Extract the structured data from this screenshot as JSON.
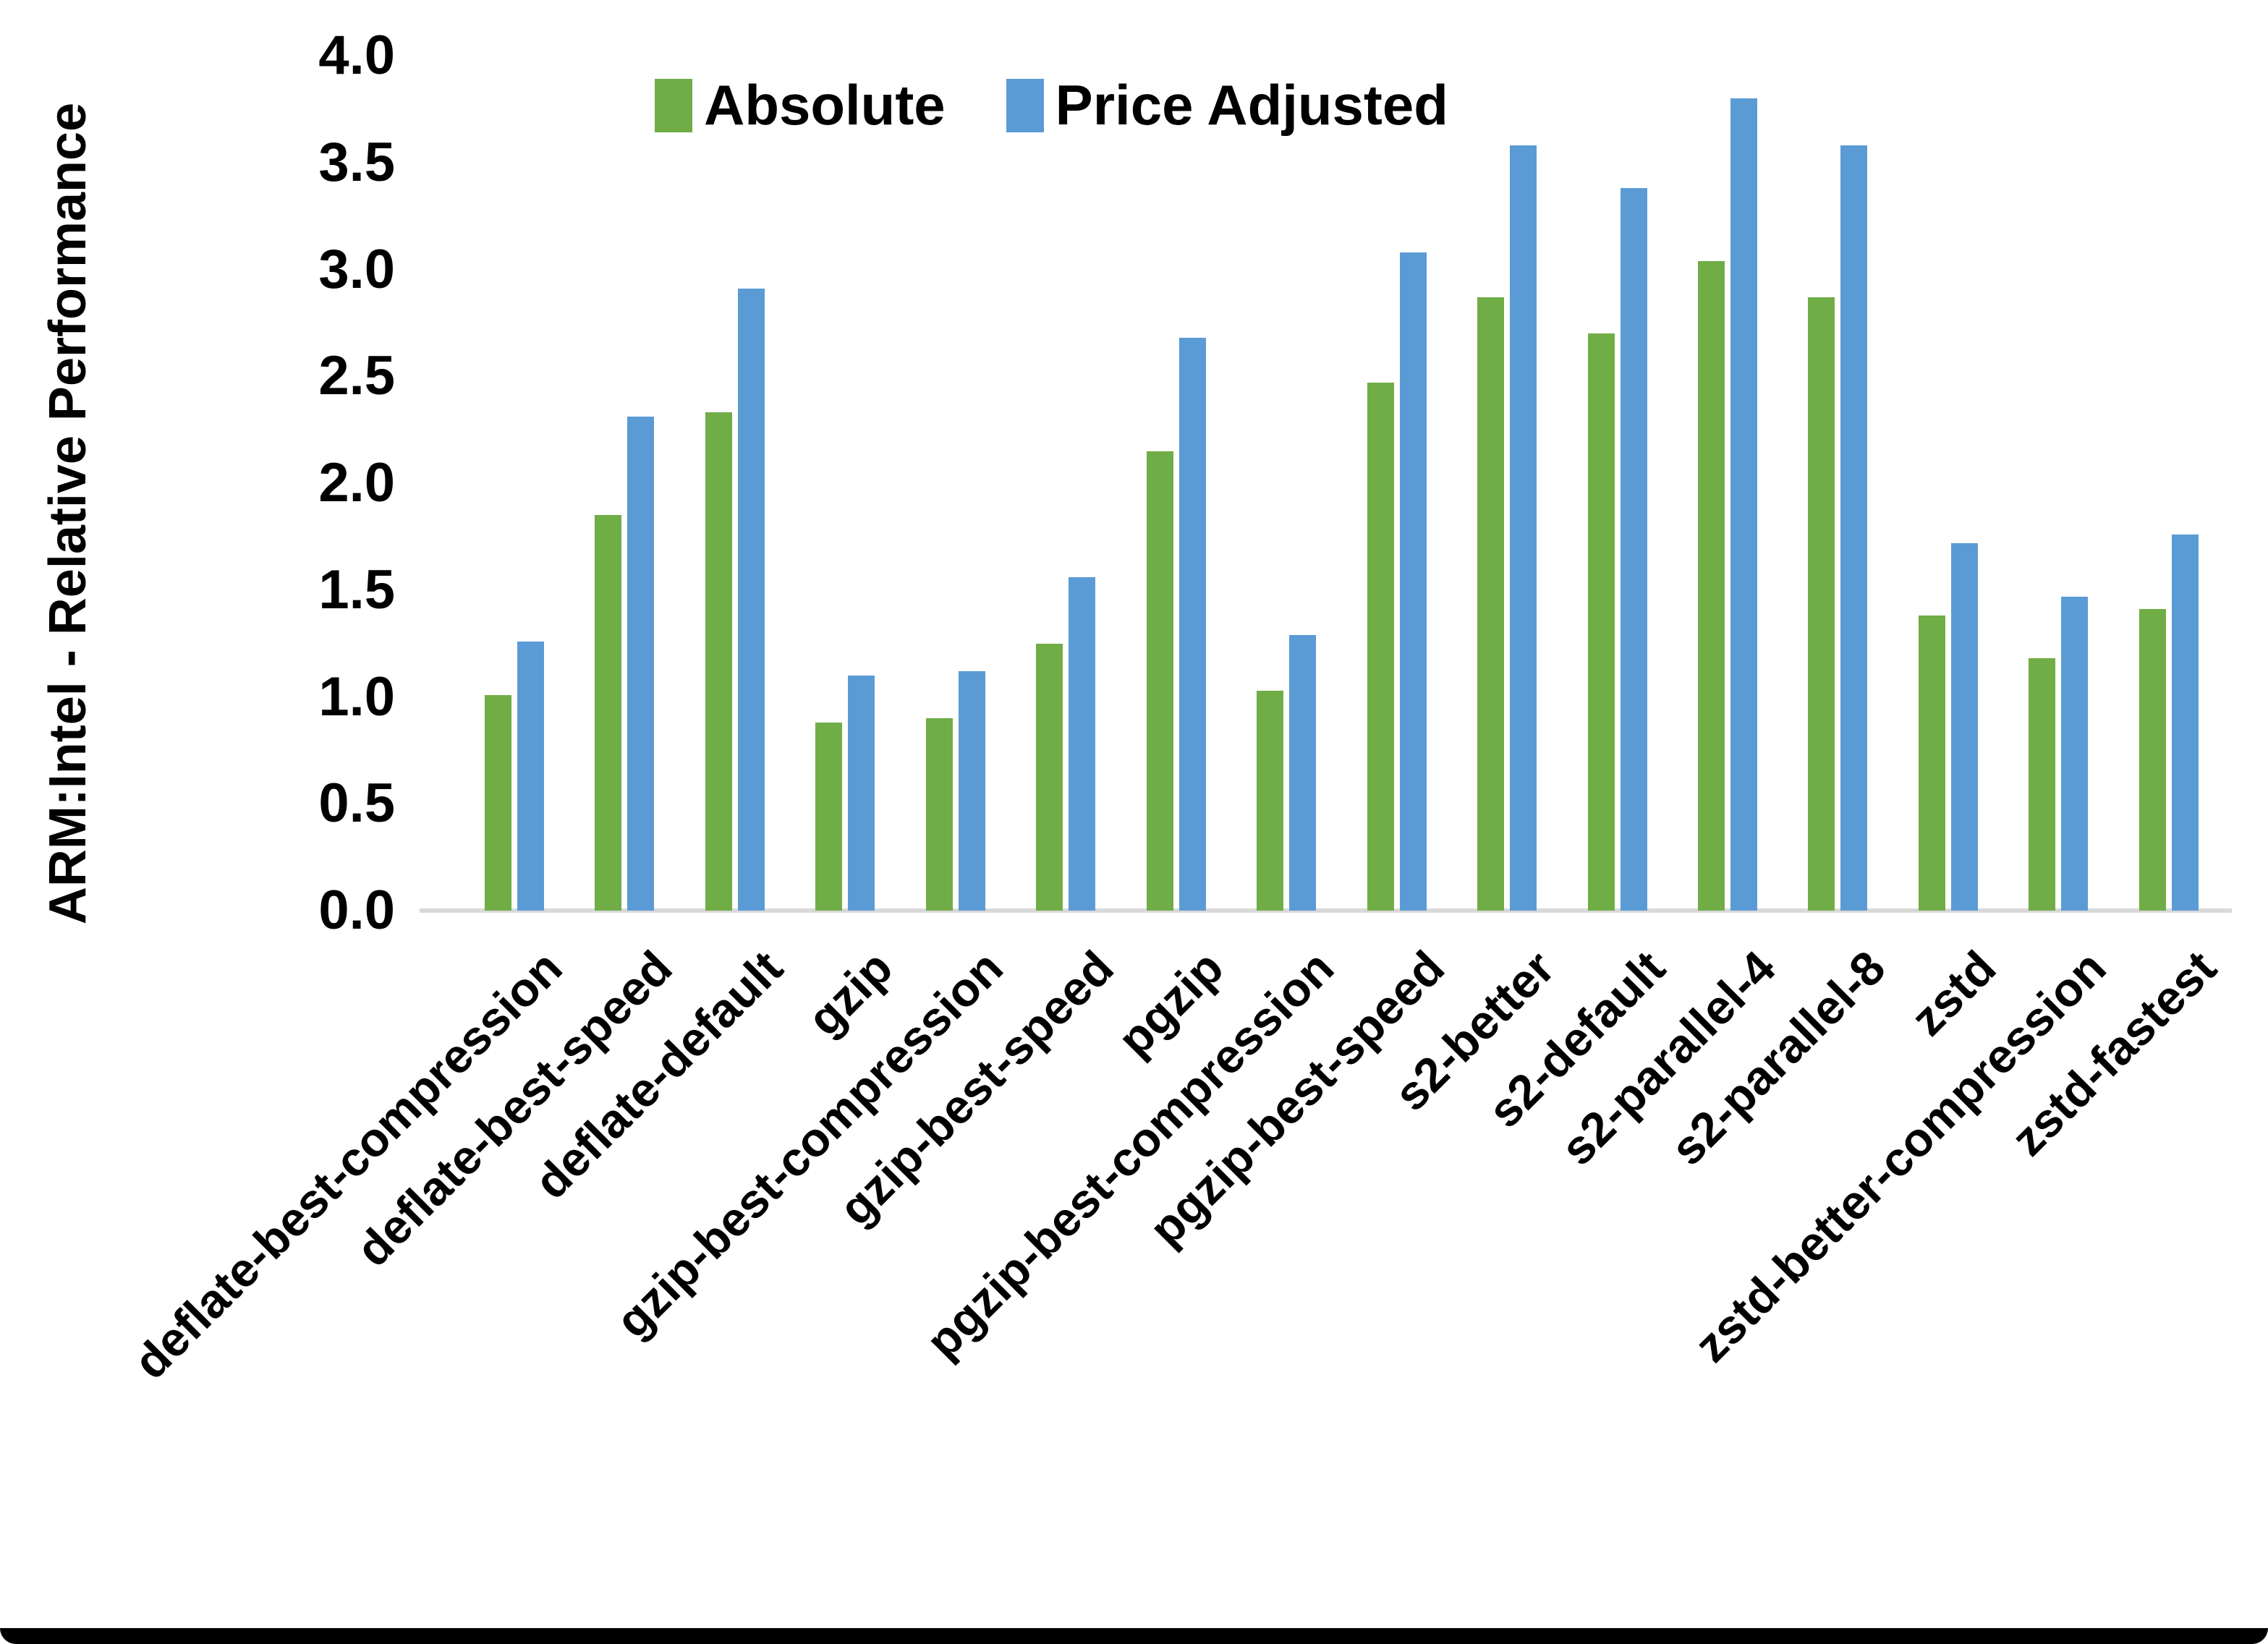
{
  "figure": {
    "background": "#FFFFFF",
    "bottom_border_color": "#000000",
    "axis_line_color": "#D9D9D9"
  },
  "legend": {
    "absolute_label": "Absolute",
    "price_adjusted_label": "Price Adjusted"
  },
  "chart_data": {
    "type": "bar",
    "title": "",
    "xlabel": "",
    "ylabel": "ARM:Intel - Relative Performance",
    "ylim": [
      0.0,
      4.0
    ],
    "ytick_step": 0.5,
    "yticks": [
      "0.0",
      "0.5",
      "1.0",
      "1.5",
      "2.0",
      "2.5",
      "3.0",
      "3.5",
      "4.0"
    ],
    "grid": false,
    "legend_position": "top-center-inside",
    "categories": [
      "deflate-best-compression",
      "deflate-best-speed",
      "deflate-default",
      "gzip",
      "gzip-best-compression",
      "gzip-best-speed",
      "pgzip",
      "pgzip-best-compression",
      "pgzip-best-speed",
      "s2-better",
      "s2-default",
      "s2-parallel-4",
      "s2-parallel-8",
      "zstd",
      "zstd-better-compression",
      "zstd-fastest"
    ],
    "series": [
      {
        "name": "Absolute",
        "color": "#70AD47",
        "values": [
          1.01,
          1.85,
          2.33,
          0.88,
          0.9,
          1.25,
          2.15,
          1.03,
          2.47,
          2.87,
          2.7,
          3.04,
          2.87,
          1.38,
          1.18,
          1.41
        ]
      },
      {
        "name": "Price Adjusted",
        "color": "#5B9BD5",
        "values": [
          1.26,
          2.31,
          2.91,
          1.1,
          1.12,
          1.56,
          2.68,
          1.29,
          3.08,
          3.58,
          3.38,
          3.8,
          3.58,
          1.72,
          1.47,
          1.76
        ]
      }
    ]
  }
}
